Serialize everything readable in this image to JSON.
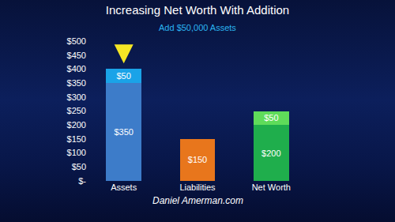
{
  "chart_data": {
    "type": "bar",
    "title": "Increasing Net Worth With Addition",
    "subtitle": "Add $50,000 Assets",
    "annotations": [
      "Daniel Amerman.com"
    ],
    "categories": [
      "Assets",
      "Liabilities",
      "Net Worth"
    ],
    "series": [
      {
        "values": [
          350,
          150,
          200
        ],
        "value_labels": [
          "$350",
          "$150",
          "$200"
        ],
        "colors": [
          "#3d7cc9",
          "#e8761c",
          "#1fae4c"
        ]
      },
      {
        "values": [
          50,
          null,
          50
        ],
        "value_labels": [
          "$50",
          null,
          "$50"
        ],
        "colors": [
          "#1aa3e8",
          null,
          "#5fdc5a"
        ]
      }
    ],
    "stacked": true,
    "data_labels": true,
    "grid": false,
    "ylim": [
      0,
      500
    ],
    "yticks": [
      {
        "value": 0,
        "label": "$-"
      },
      {
        "value": 50,
        "label": "$50"
      },
      {
        "value": 100,
        "label": "$100"
      },
      {
        "value": 150,
        "label": "$150"
      },
      {
        "value": 200,
        "label": "$200"
      },
      {
        "value": 250,
        "label": "$250"
      },
      {
        "value": 300,
        "label": "$300"
      },
      {
        "value": 350,
        "label": "$350"
      },
      {
        "value": 400,
        "label": "$400"
      },
      {
        "value": 450,
        "label": "$450"
      },
      {
        "value": 500,
        "label": "$500"
      }
    ]
  }
}
